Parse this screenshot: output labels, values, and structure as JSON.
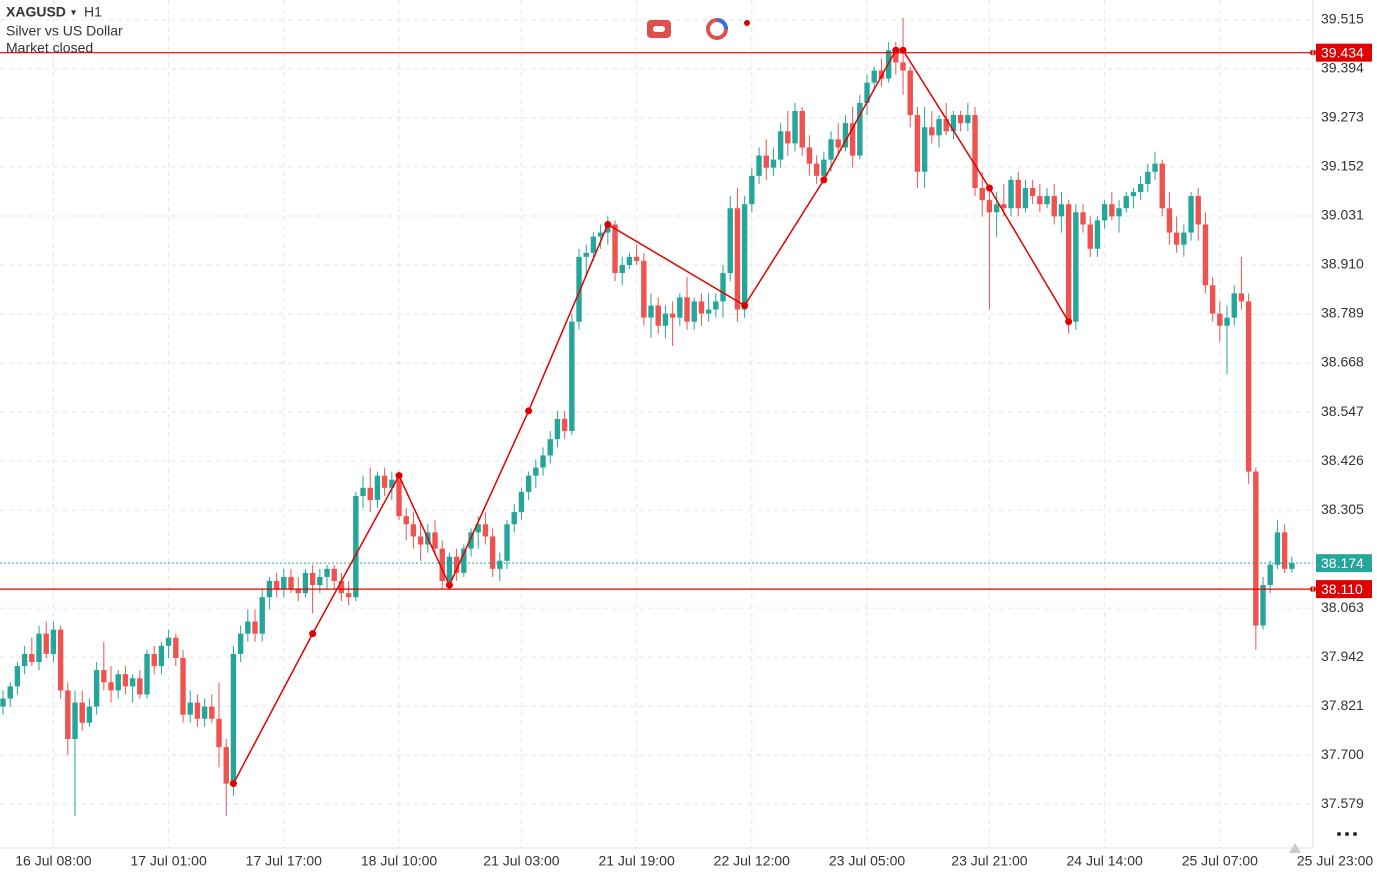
{
  "chart_data": {
    "type": "candlestick",
    "symbol": "XAGUSD",
    "timeframe": "H1",
    "subtitle": "Silver vs US Dollar",
    "status": "Market closed",
    "up_color": "#26a69a",
    "down_color": "#ef5350",
    "ohlc": [
      [
        37.82,
        37.86,
        37.8,
        37.84
      ],
      [
        37.84,
        37.88,
        37.82,
        37.87
      ],
      [
        37.87,
        37.93,
        37.85,
        37.92
      ],
      [
        37.92,
        37.97,
        37.9,
        37.95
      ],
      [
        37.95,
        37.99,
        37.92,
        37.93
      ],
      [
        37.93,
        38.02,
        37.91,
        38.0
      ],
      [
        38.0,
        38.03,
        37.94,
        37.95
      ],
      [
        37.95,
        38.03,
        37.93,
        38.01
      ],
      [
        38.01,
        38.02,
        37.84,
        37.86
      ],
      [
        37.86,
        37.88,
        37.7,
        37.74
      ],
      [
        37.74,
        37.86,
        37.55,
        37.83
      ],
      [
        37.83,
        37.86,
        37.76,
        37.78
      ],
      [
        37.78,
        37.84,
        37.77,
        37.82
      ],
      [
        37.82,
        37.93,
        37.8,
        37.91
      ],
      [
        37.91,
        37.98,
        37.86,
        37.88
      ],
      [
        37.88,
        37.92,
        37.83,
        37.86
      ],
      [
        37.86,
        37.91,
        37.84,
        37.9
      ],
      [
        37.9,
        37.92,
        37.85,
        37.87
      ],
      [
        37.87,
        37.9,
        37.83,
        37.89
      ],
      [
        37.89,
        37.91,
        37.84,
        37.85
      ],
      [
        37.85,
        37.96,
        37.84,
        37.95
      ],
      [
        37.95,
        37.97,
        37.9,
        37.92
      ],
      [
        37.92,
        37.98,
        37.9,
        37.97
      ],
      [
        37.97,
        38.01,
        37.94,
        37.99
      ],
      [
        37.99,
        38.0,
        37.92,
        37.94
      ],
      [
        37.94,
        37.96,
        37.78,
        37.8
      ],
      [
        37.8,
        37.86,
        37.78,
        37.83
      ],
      [
        37.83,
        37.85,
        37.77,
        37.79
      ],
      [
        37.79,
        37.84,
        37.77,
        37.82
      ],
      [
        37.82,
        37.85,
        37.78,
        37.79
      ],
      [
        37.79,
        37.88,
        37.67,
        37.72
      ],
      [
        37.72,
        37.74,
        37.55,
        37.63
      ],
      [
        37.63,
        37.97,
        37.6,
        37.95
      ],
      [
        37.95,
        38.02,
        37.93,
        38.0
      ],
      [
        38.0,
        38.06,
        37.98,
        38.03
      ],
      [
        38.03,
        38.06,
        37.98,
        38.0
      ],
      [
        38.0,
        38.11,
        37.98,
        38.09
      ],
      [
        38.09,
        38.14,
        38.06,
        38.13
      ],
      [
        38.13,
        38.15,
        38.09,
        38.11
      ],
      [
        38.11,
        38.16,
        38.09,
        38.14
      ],
      [
        38.14,
        38.16,
        38.1,
        38.11
      ],
      [
        38.11,
        38.14,
        38.08,
        38.1
      ],
      [
        38.1,
        38.16,
        38.09,
        38.15
      ],
      [
        38.15,
        38.17,
        38.05,
        38.12
      ],
      [
        38.12,
        38.16,
        38.1,
        38.14
      ],
      [
        38.14,
        38.17,
        38.11,
        38.16
      ],
      [
        38.16,
        38.17,
        38.11,
        38.13
      ],
      [
        38.13,
        38.15,
        38.08,
        38.1
      ],
      [
        38.1,
        38.13,
        38.07,
        38.09
      ],
      [
        38.09,
        38.35,
        38.08,
        38.34
      ],
      [
        38.34,
        38.39,
        38.31,
        38.36
      ],
      [
        38.36,
        38.41,
        38.3,
        38.33
      ],
      [
        38.33,
        38.4,
        38.31,
        38.39
      ],
      [
        38.39,
        38.41,
        38.34,
        38.36
      ],
      [
        38.36,
        38.4,
        38.33,
        38.38
      ],
      [
        38.38,
        38.4,
        38.28,
        38.29
      ],
      [
        38.29,
        38.31,
        38.23,
        38.27
      ],
      [
        38.27,
        38.3,
        38.21,
        38.24
      ],
      [
        38.24,
        38.28,
        38.18,
        38.22
      ],
      [
        38.22,
        38.27,
        38.2,
        38.25
      ],
      [
        38.25,
        38.28,
        38.2,
        38.21
      ],
      [
        38.21,
        38.23,
        38.11,
        38.13
      ],
      [
        38.13,
        38.2,
        38.11,
        38.19
      ],
      [
        38.19,
        38.21,
        38.13,
        38.15
      ],
      [
        38.15,
        38.22,
        38.14,
        38.21
      ],
      [
        38.21,
        38.26,
        38.19,
        38.25
      ],
      [
        38.25,
        38.29,
        38.21,
        38.27
      ],
      [
        38.27,
        38.3,
        38.22,
        38.24
      ],
      [
        38.24,
        38.26,
        38.14,
        38.16
      ],
      [
        38.16,
        38.2,
        38.13,
        38.18
      ],
      [
        38.18,
        38.28,
        38.16,
        38.27
      ],
      [
        38.27,
        38.32,
        38.25,
        38.3
      ],
      [
        38.3,
        38.36,
        38.28,
        38.35
      ],
      [
        38.35,
        38.4,
        38.33,
        38.39
      ],
      [
        38.39,
        38.43,
        38.36,
        38.41
      ],
      [
        38.41,
        38.46,
        38.39,
        38.44
      ],
      [
        38.44,
        38.5,
        38.42,
        38.48
      ],
      [
        38.48,
        38.55,
        38.46,
        38.53
      ],
      [
        38.53,
        38.55,
        38.48,
        38.5
      ],
      [
        38.5,
        38.79,
        38.49,
        38.77
      ],
      [
        38.77,
        38.95,
        38.75,
        38.93
      ],
      [
        38.93,
        38.96,
        38.88,
        38.94
      ],
      [
        38.94,
        38.99,
        38.92,
        38.98
      ],
      [
        38.98,
        39.01,
        38.95,
        38.99
      ],
      [
        38.99,
        39.03,
        38.96,
        39.01
      ],
      [
        39.01,
        39.02,
        38.87,
        38.89
      ],
      [
        38.89,
        38.93,
        38.86,
        38.91
      ],
      [
        38.91,
        38.94,
        38.9,
        38.93
      ],
      [
        38.93,
        38.96,
        38.91,
        38.92
      ],
      [
        38.92,
        38.94,
        38.76,
        38.78
      ],
      [
        38.78,
        38.84,
        38.73,
        38.81
      ],
      [
        38.81,
        38.83,
        38.74,
        38.76
      ],
      [
        38.76,
        38.81,
        38.73,
        38.79
      ],
      [
        38.79,
        38.82,
        38.71,
        38.78
      ],
      [
        38.78,
        38.84,
        38.76,
        38.83
      ],
      [
        38.83,
        38.88,
        38.75,
        38.77
      ],
      [
        38.77,
        38.83,
        38.75,
        38.82
      ],
      [
        38.82,
        38.84,
        38.76,
        38.79
      ],
      [
        38.79,
        38.84,
        38.77,
        38.8
      ],
      [
        38.8,
        38.84,
        38.78,
        38.82
      ],
      [
        38.82,
        38.91,
        38.78,
        38.89
      ],
      [
        38.89,
        39.08,
        38.87,
        39.05
      ],
      [
        39.05,
        39.1,
        38.77,
        38.8
      ],
      [
        38.8,
        39.08,
        38.78,
        39.06
      ],
      [
        39.06,
        39.15,
        39.04,
        39.13
      ],
      [
        39.13,
        39.2,
        39.11,
        39.18
      ],
      [
        39.18,
        39.22,
        39.12,
        39.15
      ],
      [
        39.15,
        39.2,
        39.13,
        39.17
      ],
      [
        39.17,
        39.26,
        39.15,
        39.24
      ],
      [
        39.24,
        39.29,
        39.18,
        39.21
      ],
      [
        39.21,
        39.31,
        39.19,
        39.29
      ],
      [
        39.29,
        39.3,
        39.18,
        39.2
      ],
      [
        39.2,
        39.23,
        39.13,
        39.16
      ],
      [
        39.16,
        39.18,
        39.11,
        39.13
      ],
      [
        39.13,
        39.19,
        39.12,
        39.17
      ],
      [
        39.17,
        39.24,
        39.14,
        39.22
      ],
      [
        39.22,
        39.26,
        39.18,
        39.2
      ],
      [
        39.2,
        39.28,
        39.19,
        39.26
      ],
      [
        39.26,
        39.3,
        39.15,
        39.18
      ],
      [
        39.18,
        39.33,
        39.17,
        39.31
      ],
      [
        39.31,
        39.38,
        39.28,
        39.36
      ],
      [
        39.36,
        39.4,
        39.34,
        39.39
      ],
      [
        39.39,
        39.42,
        39.35,
        39.37
      ],
      [
        39.37,
        39.46,
        39.36,
        39.44
      ],
      [
        39.44,
        39.46,
        39.38,
        39.41
      ],
      [
        39.41,
        39.52,
        39.33,
        39.39
      ],
      [
        39.39,
        39.4,
        39.25,
        39.28
      ],
      [
        39.28,
        39.3,
        39.1,
        39.14
      ],
      [
        39.14,
        39.3,
        39.1,
        39.25
      ],
      [
        39.25,
        39.29,
        39.21,
        39.23
      ],
      [
        39.23,
        39.28,
        39.2,
        39.27
      ],
      [
        39.27,
        39.31,
        39.23,
        39.24
      ],
      [
        39.24,
        39.29,
        39.22,
        39.28
      ],
      [
        39.28,
        39.29,
        39.24,
        39.26
      ],
      [
        39.26,
        39.31,
        39.24,
        39.28
      ],
      [
        39.28,
        39.3,
        39.08,
        39.1
      ],
      [
        39.1,
        39.14,
        39.03,
        39.07
      ],
      [
        39.07,
        39.1,
        38.8,
        39.04
      ],
      [
        39.04,
        39.09,
        38.98,
        39.06
      ],
      [
        39.06,
        39.11,
        39.03,
        39.05
      ],
      [
        39.05,
        39.13,
        39.03,
        39.12
      ],
      [
        39.12,
        39.14,
        39.03,
        39.05
      ],
      [
        39.05,
        39.12,
        39.04,
        39.1
      ],
      [
        39.1,
        39.12,
        39.06,
        39.08
      ],
      [
        39.08,
        39.11,
        39.04,
        39.06
      ],
      [
        39.06,
        39.1,
        39.05,
        39.08
      ],
      [
        39.08,
        39.11,
        39.01,
        39.03
      ],
      [
        39.03,
        39.09,
        38.99,
        39.06
      ],
      [
        39.06,
        39.07,
        38.74,
        38.77
      ],
      [
        38.77,
        39.06,
        38.75,
        39.04
      ],
      [
        39.04,
        39.06,
        38.99,
        39.01
      ],
      [
        39.01,
        39.03,
        38.93,
        38.95
      ],
      [
        38.95,
        39.03,
        38.93,
        39.02
      ],
      [
        39.02,
        39.07,
        39.0,
        39.06
      ],
      [
        39.06,
        39.09,
        39.02,
        39.03
      ],
      [
        39.03,
        39.07,
        38.99,
        39.05
      ],
      [
        39.05,
        39.09,
        39.04,
        39.08
      ],
      [
        39.08,
        39.1,
        39.05,
        39.09
      ],
      [
        39.09,
        39.13,
        39.07,
        39.11
      ],
      [
        39.11,
        39.16,
        39.09,
        39.14
      ],
      [
        39.14,
        39.19,
        39.12,
        39.16
      ],
      [
        39.16,
        39.17,
        39.03,
        39.05
      ],
      [
        39.05,
        39.09,
        38.96,
        38.99
      ],
      [
        38.99,
        39.03,
        38.94,
        38.96
      ],
      [
        38.96,
        39.01,
        38.93,
        38.99
      ],
      [
        38.99,
        39.09,
        38.97,
        39.08
      ],
      [
        39.08,
        39.1,
        38.97,
        39.01
      ],
      [
        39.01,
        39.04,
        38.84,
        38.86
      ],
      [
        38.86,
        38.88,
        38.77,
        38.79
      ],
      [
        38.79,
        38.82,
        38.72,
        38.76
      ],
      [
        38.76,
        38.81,
        38.64,
        38.78
      ],
      [
        38.78,
        38.86,
        38.76,
        38.84
      ],
      [
        38.84,
        38.93,
        38.8,
        38.82
      ],
      [
        38.82,
        38.84,
        38.37,
        38.4
      ],
      [
        38.4,
        38.41,
        37.96,
        38.02
      ],
      [
        38.02,
        38.14,
        38.01,
        38.12
      ],
      [
        38.12,
        38.18,
        38.1,
        38.17
      ],
      [
        38.17,
        38.28,
        38.16,
        38.25
      ],
      [
        38.25,
        38.27,
        38.15,
        38.16
      ],
      [
        38.16,
        38.19,
        38.15,
        38.174
      ]
    ],
    "ylim": [
      37.471,
      39.564
    ],
    "yticks": [
      37.579,
      {
        "value": 37.7,
        "label": "37.700"
      },
      37.821,
      37.942,
      38.063,
      38.305,
      38.426,
      38.547,
      38.668,
      38.789,
      {
        "value": 38.91,
        "label": "38.910"
      },
      39.031,
      39.152,
      39.273,
      39.394,
      39.515
    ],
    "xlim": [
      -0.42,
      181.8
    ],
    "xticks": [
      {
        "value": 7,
        "label": "16 Jul 08:00"
      },
      {
        "value": 23,
        "label": "17 Jul 01:00"
      },
      {
        "value": 39,
        "label": "17 Jul 17:00"
      },
      {
        "value": 55,
        "label": "18 Jul 10:00"
      },
      {
        "value": 72,
        "label": "21 Jul 03:00"
      },
      {
        "value": 88,
        "label": "21 Jul 19:00"
      },
      {
        "value": 104,
        "label": "22 Jul 12:00"
      },
      {
        "value": 120,
        "label": "23 Jul 05:00"
      },
      {
        "value": 137,
        "label": "23 Jul 21:00"
      },
      {
        "value": 153,
        "label": "24 Jul 14:00"
      },
      {
        "value": 169,
        "label": "25 Jul 07:00"
      },
      {
        "value": 185,
        "label": "25 Jul 23:00"
      }
    ],
    "grid": true,
    "levels": [
      {
        "value": 39.434,
        "color": "#e00000"
      },
      {
        "value": 38.11,
        "label": "38.110",
        "color": "#e00000"
      }
    ],
    "last_price": 38.174,
    "last_color": "#26a69a",
    "zigzag": {
      "color": "#e00000",
      "x": [
        32,
        43,
        55,
        62,
        73,
        84,
        103,
        114,
        124,
        125,
        137,
        148
      ],
      "values": [
        37.63,
        38.0,
        38.39,
        38.12,
        38.55,
        39.01,
        38.81,
        39.12,
        39.44,
        39.44,
        39.1,
        38.77
      ]
    }
  }
}
